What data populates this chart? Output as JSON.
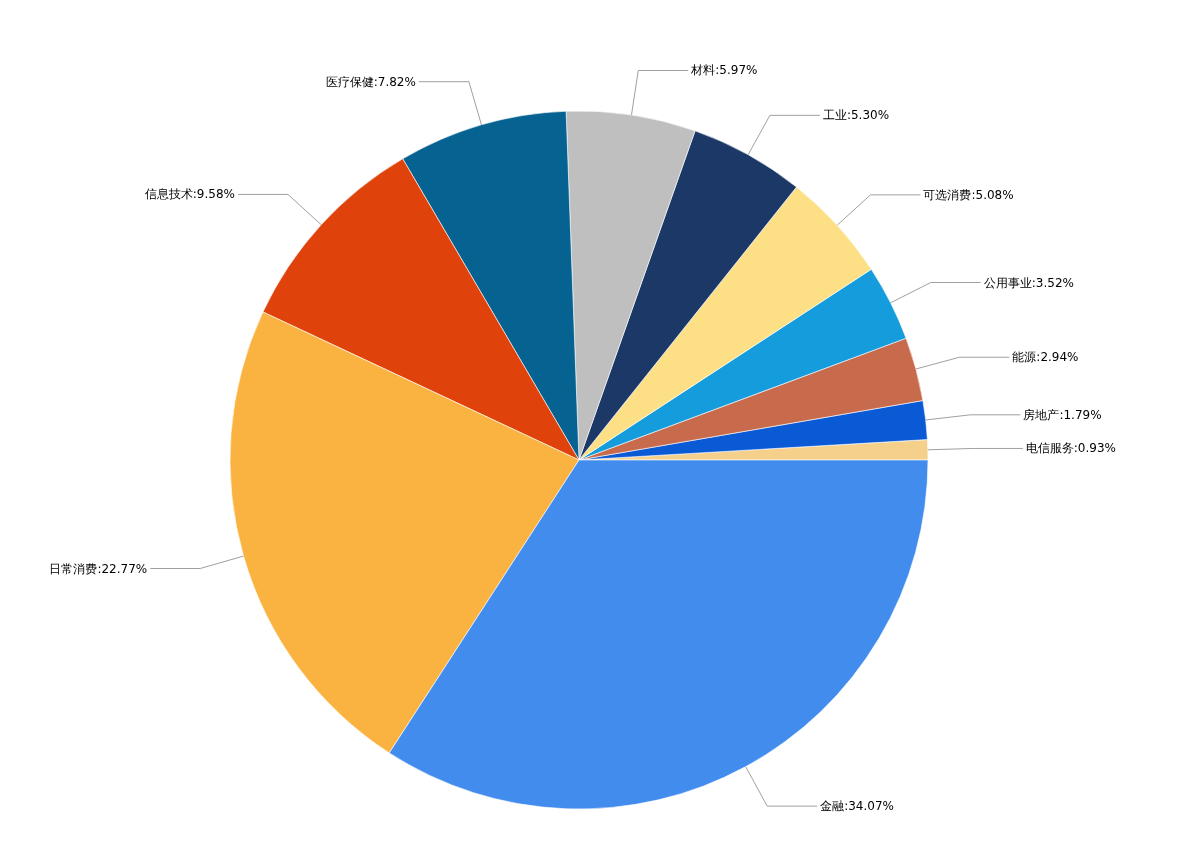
{
  "chart_data": {
    "type": "pie",
    "categories": [
      "电信服务",
      "房地产",
      "能源",
      "公用事业",
      "可选消费",
      "工业",
      "材料",
      "医疗保健",
      "信息技术",
      "日常消费",
      "金融"
    ],
    "values": [
      0.93,
      1.79,
      2.94,
      3.52,
      5.08,
      5.3,
      5.97,
      7.82,
      9.58,
      22.77,
      34.07
    ],
    "value_labels": [
      "0.93%",
      "1.79%",
      "2.94%",
      "3.52%",
      "5.08%",
      "5.30%",
      "5.97%",
      "7.82%",
      "9.58%",
      "22.77%",
      "34.07%"
    ],
    "colors": [
      "#f5d08a",
      "#0a5ad6",
      "#c86a4c",
      "#149cdc",
      "#fde085",
      "#1b3867",
      "#bfbfbf",
      "#066391",
      "#e0420b",
      "#fab340",
      "#428cee"
    ]
  }
}
